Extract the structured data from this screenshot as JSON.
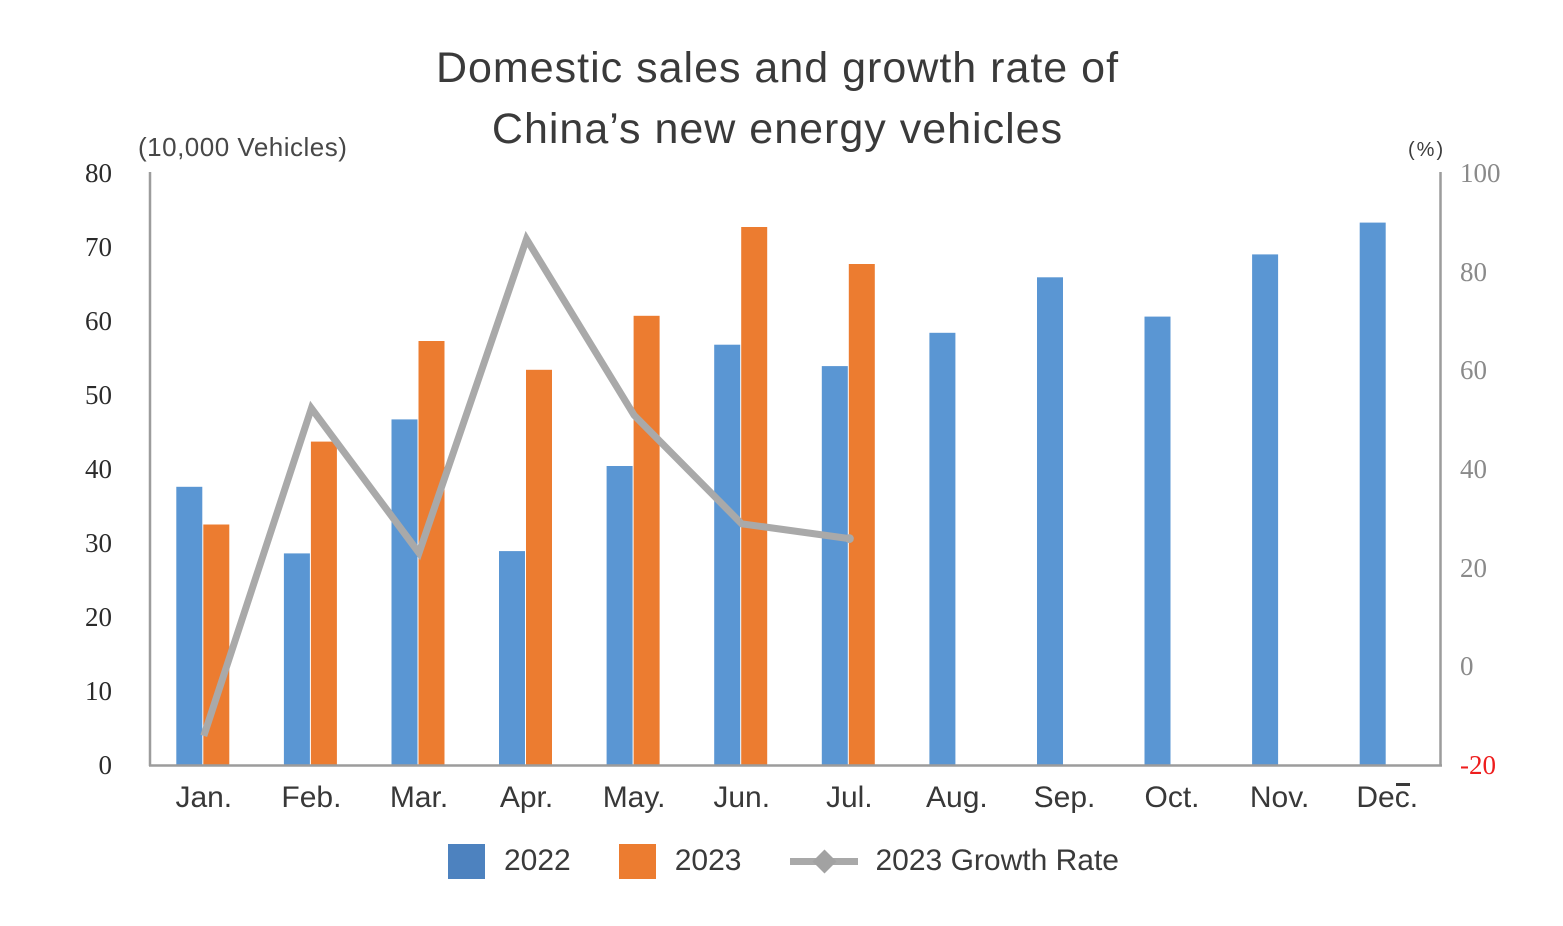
{
  "title": {
    "line1": "Domestic sales and growth rate of",
    "line2": "China’s new energy vehicles"
  },
  "left_axis": {
    "unit_label": "(10,000 Vehicles)",
    "ticks": [
      80,
      70,
      60,
      50,
      40,
      30,
      20,
      10,
      0
    ],
    "tick_color": "#2b2b2b"
  },
  "right_axis": {
    "unit_label": "(%)",
    "ticks": [
      100,
      80,
      60,
      40,
      20,
      0,
      -20
    ],
    "tick_color": "#8a8a8a",
    "negative_tick_color": "#ee1d1d"
  },
  "chart_data": {
    "type": "bar+line",
    "categories": [
      "Jan.",
      "Feb.",
      "Mar.",
      "Apr.",
      "May.",
      "Jun.",
      "Jul.",
      "Aug.",
      "Sep.",
      "Oct.",
      "Nov.",
      "Dec."
    ],
    "series": [
      {
        "name": "2022",
        "type": "bar",
        "axis": "left",
        "color": "#5a96d3",
        "values": [
          37.6,
          28.6,
          46.7,
          28.9,
          40.4,
          56.8,
          53.9,
          58.4,
          65.9,
          60.6,
          69.0,
          73.3
        ]
      },
      {
        "name": "2023",
        "type": "bar",
        "axis": "left",
        "color": "#ec7c30",
        "values": [
          32.5,
          43.7,
          57.3,
          53.4,
          60.7,
          72.7,
          67.7,
          null,
          null,
          null,
          null,
          null
        ]
      },
      {
        "name": "2023 Growth Rate",
        "type": "line",
        "axis": "right",
        "color": "#a9a9a9",
        "values": [
          -14.1,
          52.3,
          23.0,
          86.6,
          50.9,
          28.9,
          25.9,
          null,
          null,
          null,
          null,
          null
        ]
      }
    ],
    "left_ylim": [
      0,
      80
    ],
    "right_ylim": [
      -20,
      100
    ],
    "grid": false,
    "legend_position": "bottom",
    "axis_line_color": "#9c9c9c"
  },
  "legend": {
    "items": [
      {
        "label": "2022",
        "swatch": "square",
        "color": "#4d82bf"
      },
      {
        "label": "2023",
        "swatch": "square",
        "color": "#ec7c30"
      },
      {
        "label": "2023 Growth Rate",
        "swatch": "line-diamond",
        "color": "#a9a9a9"
      }
    ]
  },
  "icons": {
    "dec_trailing_mark": "superscript-dash"
  }
}
